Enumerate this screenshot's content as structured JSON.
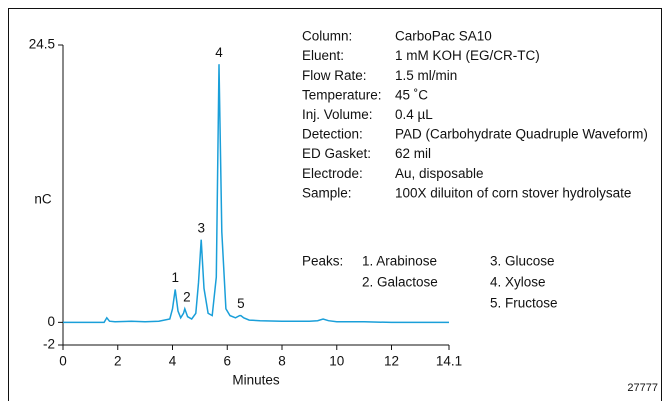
{
  "chart_data": {
    "type": "line",
    "x_label": "Minutes",
    "y_label": "nC",
    "figure_number": "27777",
    "xlim": [
      0,
      14.1
    ],
    "xticks": [
      0,
      2,
      4,
      6,
      8,
      10,
      12,
      14.1
    ],
    "ylim": [
      -2,
      24.5
    ],
    "yticks": [
      -2,
      0,
      24.5
    ],
    "x": [
      0,
      1.5,
      1.6,
      1.7,
      1.9,
      2.5,
      3.0,
      3.5,
      3.9,
      4.0,
      4.1,
      4.2,
      4.3,
      4.4,
      4.45,
      4.55,
      4.7,
      4.85,
      4.95,
      5.05,
      5.15,
      5.3,
      5.45,
      5.6,
      5.7,
      5.8,
      5.95,
      6.1,
      6.3,
      6.45,
      6.5,
      6.6,
      6.8,
      7.2,
      8,
      9,
      9.3,
      9.5,
      9.7,
      10,
      11,
      12,
      13,
      14.1
    ],
    "series": [
      {
        "color": "#1a9fd9",
        "values": [
          0,
          0,
          0.4,
          0.1,
          0.05,
          0.1,
          0.05,
          0.1,
          0.3,
          1.2,
          2.9,
          1.0,
          0.4,
          0.8,
          1.2,
          0.5,
          0.3,
          0.8,
          3.5,
          7.3,
          3.0,
          0.8,
          0.6,
          4,
          22.8,
          8,
          1.2,
          0.6,
          0.4,
          0.6,
          0.6,
          0.4,
          0.2,
          0.15,
          0.1,
          0.1,
          0.15,
          0.3,
          0.15,
          0.05,
          0.05,
          0,
          0,
          0
        ]
      }
    ],
    "peaks": [
      {
        "label": "1",
        "time": 4.1,
        "height": 2.9
      },
      {
        "label": "2",
        "time": 4.45,
        "height": 1.2
      },
      {
        "label": "3",
        "time": 5.05,
        "height": 7.3
      },
      {
        "label": "4",
        "time": 5.7,
        "height": 22.8
      },
      {
        "label": "5",
        "time": 6.5,
        "height": 0.6
      }
    ],
    "conditions": [
      {
        "label": "Column:",
        "value": "CarboPac SA10"
      },
      {
        "label": "Eluent:",
        "value": "1 mM KOH  (EG/CR-TC)"
      },
      {
        "label": "Flow Rate:",
        "value": "1.5 ml/min"
      },
      {
        "label": "Temperature:",
        "value": "45 ˚C"
      },
      {
        "label": "Inj. Volume:",
        "value": "0.4 µL"
      },
      {
        "label": "Detection:",
        "value": "PAD (Carbohydrate Quadruple Waveform)"
      },
      {
        "label": "ED Gasket:",
        "value": "62 mil"
      },
      {
        "label": "Electrode:",
        "value": "Au, disposable"
      },
      {
        "label": "Sample:",
        "value": "100X diluiton of corn stover hydrolysate"
      }
    ],
    "peaks_title": "Peaks:",
    "peak_names": [
      "1. Arabinose",
      "2. Galactose",
      "3. Glucose",
      "4. Xylose",
      "5. Fructose"
    ]
  }
}
